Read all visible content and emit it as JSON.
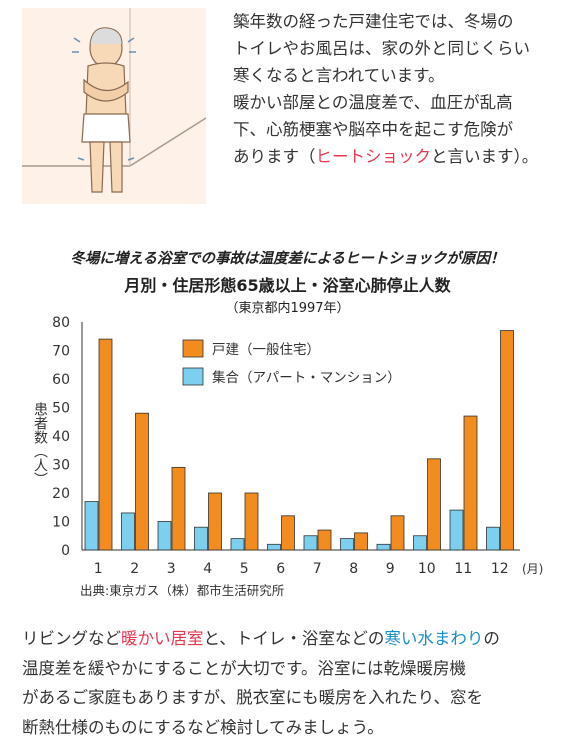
{
  "intro": {
    "line1": "築年数の経った戸建住宅では、冬場の",
    "line2": "トイレやお風呂は、家の外と同じくらい",
    "line3": "寒くなると言われています。",
    "line4": "暖かい部屋との温度差で、血圧が乱高",
    "line5": "下、心筋梗塞や脳卒中を起こす危険が",
    "line6_pre": "あります（",
    "line6_highlight": "ヒートショック",
    "line6_post": "と言います）。"
  },
  "colors": {
    "orange": "#f28c1e",
    "blue": "#7ccfee",
    "red_text": "#e8384f",
    "blue_text": "#1a8fc9"
  },
  "chart_data": {
    "type": "bar",
    "headline": "冬場に増える浴室での事故は温度差によるヒートショックが原因！",
    "title": "月別・住居形態65歳以上・浴室心肺停止人数",
    "subtitle": "（東京都内1997年）",
    "xlabel": "(月)",
    "ylabel": "患者数（人）",
    "ylim": [
      0,
      80
    ],
    "yticks": [
      0,
      10,
      20,
      30,
      40,
      50,
      60,
      70,
      80
    ],
    "categories": [
      "1",
      "2",
      "3",
      "4",
      "5",
      "6",
      "7",
      "8",
      "9",
      "10",
      "11",
      "12"
    ],
    "series": [
      {
        "name": "戸建（一般住宅）",
        "color": "#f28c1e",
        "values": [
          74,
          48,
          29,
          20,
          20,
          12,
          7,
          6,
          12,
          32,
          47,
          77
        ]
      },
      {
        "name": "集合（アパート・マンション）",
        "color": "#7ccfee",
        "values": [
          17,
          13,
          10,
          8,
          4,
          2,
          5,
          4,
          2,
          5,
          14,
          8
        ]
      }
    ],
    "legend_position": "top-center",
    "grid": false,
    "source": "出典:東京ガス（株）都市生活研究所"
  },
  "outro": {
    "s1": "リビングなど",
    "s2_red": "暖かい居室",
    "s3": "と、トイレ・浴室などの",
    "s4_blue": "寒い水まわり",
    "s5": "の",
    "line2": "温度差を緩やかにすることが大切です。浴室には乾燥暖房機",
    "line3": "があるご家庭もありますが、脱衣室にも暖房を入れたり、窓を",
    "line4": "断熱仕様のものにするなど検討してみましょう。"
  }
}
